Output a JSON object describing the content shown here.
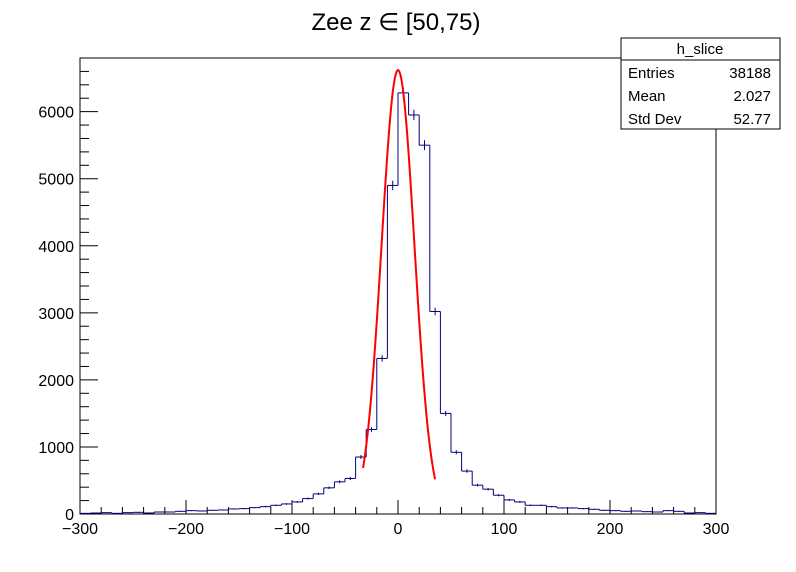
{
  "chart_data": {
    "type": "histogram",
    "title": "Zee z ∈ [50,75)",
    "xlabel": "",
    "ylabel": "",
    "xlim": [
      -300,
      300
    ],
    "ylim": [
      0,
      6800
    ],
    "grid": false,
    "x_ticks": [
      -300,
      -200,
      -100,
      0,
      100,
      200,
      300
    ],
    "x_tick_labels": [
      "−300",
      "−200",
      "−100",
      "0",
      "100",
      "200",
      "300"
    ],
    "y_ticks": [
      0,
      1000,
      2000,
      3000,
      4000,
      5000,
      6000
    ],
    "y_tick_labels": [
      "0",
      "1000",
      "2000",
      "3000",
      "4000",
      "5000",
      "6000"
    ],
    "histogram": {
      "name": "h_slice",
      "color": "#000080",
      "bin_width": 10,
      "bin_edges_start": -300,
      "values": [
        10,
        15,
        20,
        10,
        20,
        25,
        15,
        30,
        30,
        40,
        50,
        45,
        55,
        60,
        75,
        80,
        95,
        110,
        130,
        150,
        180,
        230,
        300,
        390,
        480,
        530,
        850,
        1260,
        2320,
        4900,
        6280,
        5950,
        5500,
        3020,
        1500,
        920,
        640,
        430,
        370,
        280,
        210,
        180,
        130,
        130,
        110,
        90,
        90,
        80,
        70,
        55,
        50,
        40,
        45,
        35,
        30,
        50,
        40,
        15,
        20,
        10
      ]
    },
    "fit": {
      "color": "#ff0000",
      "function": "gaus",
      "constant": 6620,
      "mean": 0,
      "sigma": 15.5,
      "range": [
        -33,
        35
      ]
    },
    "stats_box": {
      "name": "h_slice",
      "rows": [
        {
          "label": "Entries",
          "value": "38188"
        },
        {
          "label": "Mean",
          "value": "2.027"
        },
        {
          "label": "Std Dev",
          "value": "52.77"
        }
      ]
    }
  }
}
